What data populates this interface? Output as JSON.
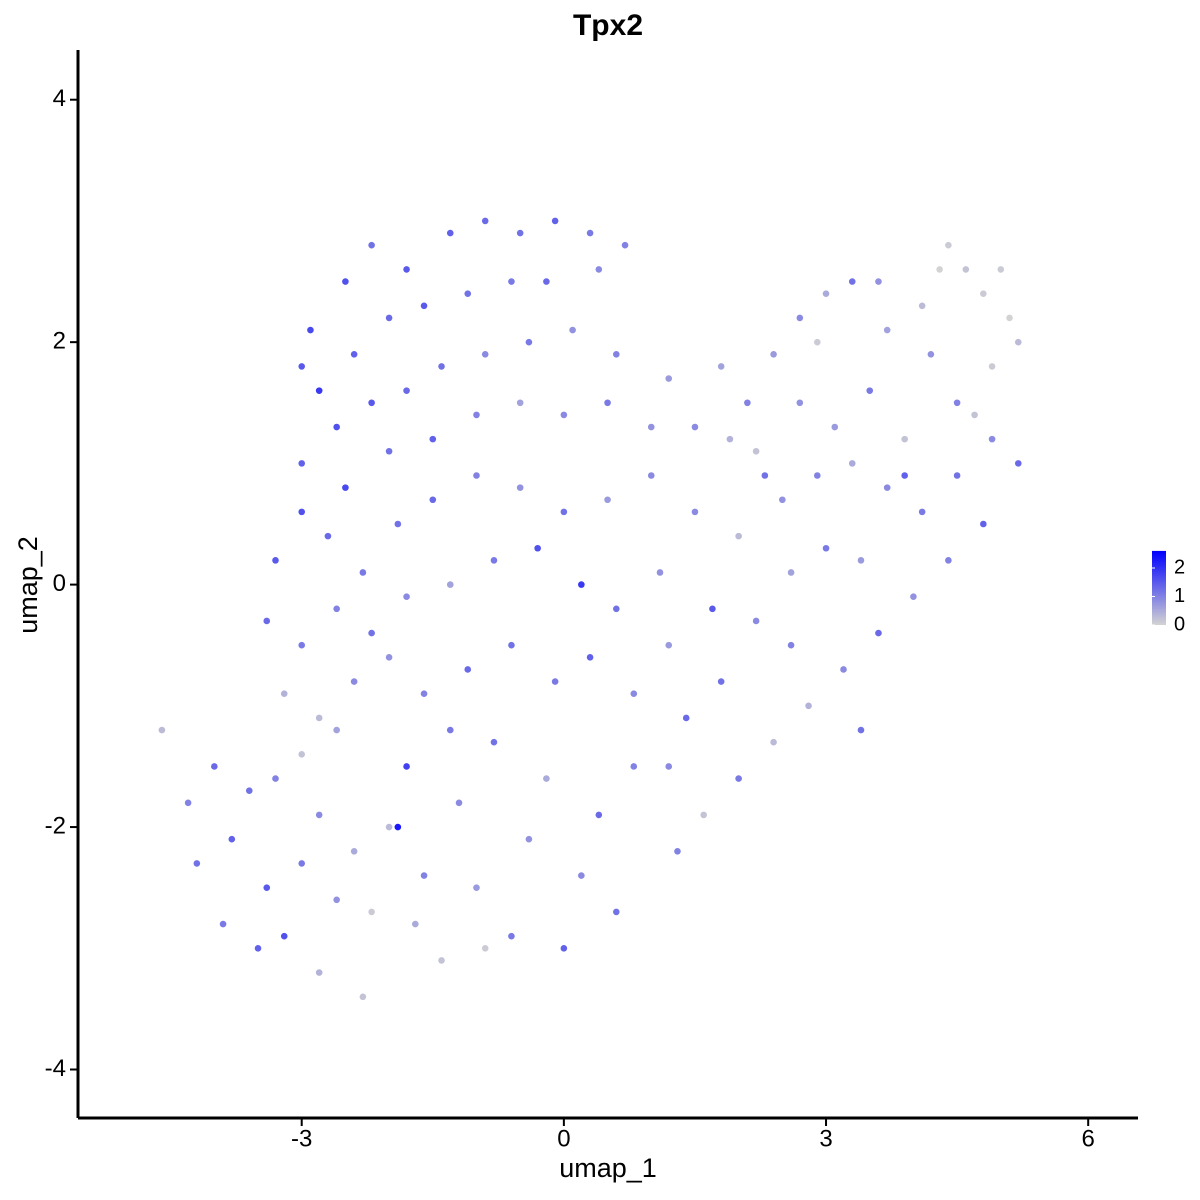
{
  "chart_data": {
    "type": "scatter",
    "title": "Tpx2",
    "xlabel": "umap_1",
    "ylabel": "umap_2",
    "xlim": [
      -5.56,
      6.57
    ],
    "ylim": [
      -4.4,
      4.41
    ],
    "xticks": [
      -3,
      0,
      3,
      6
    ],
    "yticks": [
      -4,
      -2,
      0,
      2,
      4
    ],
    "color_low": "#d3d3d3",
    "color_high": "#0000ff",
    "colorbar_lim": [
      0,
      2.6
    ],
    "colorbar_ticks": [
      0,
      1,
      2
    ],
    "x": [
      -2.2,
      -1.8,
      -1.3,
      -0.9,
      -0.5,
      -0.1,
      0.3,
      0.7,
      -2.5,
      -2.9,
      -3.0,
      -2.8,
      -2.4,
      -2.0,
      -1.6,
      -1.1,
      -0.6,
      -0.2,
      0.4,
      -2.6,
      -2.2,
      -1.8,
      -1.4,
      -0.9,
      -0.4,
      0.1,
      0.6,
      -3.0,
      -2.5,
      -2.0,
      -1.5,
      -1.0,
      -0.5,
      0.0,
      0.5,
      1.0,
      -3.3,
      -3.0,
      -2.7,
      -2.3,
      -1.9,
      -1.5,
      -1.0,
      -0.5,
      0.0,
      0.5,
      1.0,
      -3.4,
      -3.0,
      -2.6,
      -2.2,
      -1.8,
      -1.3,
      -0.8,
      -0.3,
      0.2,
      0.6,
      1.1,
      -3.2,
      -2.8,
      -2.4,
      -2.0,
      -1.6,
      -1.1,
      -0.6,
      -0.1,
      0.3,
      0.8,
      1.2,
      -4.6,
      -4.3,
      -4.0,
      -3.8,
      -3.6,
      -3.4,
      -3.2,
      -3.0,
      -2.8,
      -2.6,
      -2.4,
      -2.3,
      -2.2,
      -2.0,
      -1.9,
      -1.8,
      -1.6,
      -1.4,
      -1.2,
      -1.0,
      -0.8,
      -0.6,
      -0.4,
      -0.2,
      0.0,
      0.2,
      0.4,
      0.6,
      0.8,
      -3.0,
      -2.6,
      -3.5,
      -2.8,
      -1.7,
      -3.9,
      -4.2,
      -3.3,
      -1.3,
      -0.9,
      1.2,
      1.5,
      1.8,
      2.1,
      2.4,
      2.7,
      3.0,
      3.3,
      3.7,
      4.1,
      4.4,
      4.6,
      4.8,
      5.1,
      5.2,
      4.9,
      4.5,
      4.2,
      3.9,
      3.5,
      3.1,
      2.7,
      2.3,
      1.9,
      1.5,
      2.0,
      2.5,
      2.9,
      3.3,
      3.7,
      4.1,
      4.5,
      4.9,
      5.2,
      4.8,
      4.4,
      4.0,
      3.6,
      3.2,
      2.8,
      2.4,
      2.0,
      1.6,
      1.3,
      1.8,
      2.2,
      2.6,
      3.0,
      3.4,
      1.4,
      1.7,
      1.2,
      3.9,
      4.7,
      5.0,
      4.3,
      3.6,
      2.9,
      2.2,
      2.6,
      3.4
    ],
    "y": [
      2.8,
      2.6,
      2.9,
      3.0,
      2.9,
      3.0,
      2.9,
      2.8,
      2.5,
      2.1,
      1.8,
      1.6,
      1.9,
      2.2,
      2.3,
      2.4,
      2.5,
      2.5,
      2.6,
      1.3,
      1.5,
      1.6,
      1.8,
      1.9,
      2.0,
      2.1,
      1.9,
      1.0,
      0.8,
      1.1,
      1.2,
      1.4,
      1.5,
      1.4,
      1.5,
      1.3,
      0.2,
      0.6,
      0.4,
      0.1,
      0.5,
      0.7,
      0.9,
      0.8,
      0.6,
      0.7,
      0.9,
      -0.3,
      -0.5,
      -0.2,
      -0.4,
      -0.1,
      0.0,
      0.2,
      0.3,
      0.0,
      -0.2,
      0.1,
      -0.9,
      -1.1,
      -0.8,
      -0.6,
      -0.9,
      -0.7,
      -0.5,
      -0.8,
      -0.6,
      -0.9,
      -0.5,
      -1.2,
      -1.8,
      -1.5,
      -2.1,
      -1.7,
      -2.5,
      -2.9,
      -2.3,
      -1.9,
      -2.6,
      -2.2,
      -3.4,
      -2.7,
      -2.0,
      -2.0,
      -1.5,
      -2.4,
      -3.1,
      -1.8,
      -2.5,
      -1.3,
      -2.9,
      -2.1,
      -1.6,
      -3.0,
      -2.4,
      -1.9,
      -2.7,
      -1.5,
      -1.4,
      -1.2,
      -3.0,
      -3.2,
      -2.8,
      -2.8,
      -2.3,
      -1.6,
      -1.2,
      -3.0,
      1.7,
      1.3,
      1.8,
      1.5,
      1.9,
      2.2,
      2.4,
      2.5,
      2.1,
      2.3,
      2.8,
      2.6,
      2.4,
      2.2,
      2.0,
      1.8,
      1.5,
      1.9,
      1.2,
      1.6,
      1.3,
      1.5,
      0.9,
      1.2,
      0.6,
      0.4,
      0.7,
      0.9,
      1.0,
      0.8,
      0.6,
      0.9,
      1.2,
      1.0,
      0.5,
      0.2,
      -0.1,
      -0.4,
      -0.7,
      -1.0,
      -1.3,
      -1.6,
      -1.9,
      -2.2,
      -0.8,
      -0.3,
      0.1,
      0.3,
      0.2,
      -1.1,
      -0.2,
      -1.5,
      0.9,
      1.4,
      2.6,
      2.6,
      2.5,
      2.0,
      1.1,
      -0.5,
      -1.2
    ],
    "values": [
      1.2,
      1.5,
      1.4,
      1.3,
      1.2,
      1.4,
      1.1,
      1.0,
      1.6,
      1.7,
      1.5,
      1.9,
      1.4,
      1.3,
      1.5,
      1.2,
      1.1,
      1.3,
      0.9,
      1.6,
      1.5,
      1.3,
      1.2,
      0.9,
      1.1,
      0.8,
      1.0,
      1.4,
      1.7,
      1.2,
      1.4,
      1.0,
      0.6,
      0.9,
      1.1,
      0.8,
      1.5,
      1.6,
      1.3,
      1.1,
      1.2,
      1.3,
      1.0,
      0.8,
      1.2,
      0.7,
      0.9,
      1.3,
      1.1,
      1.0,
      1.2,
      0.9,
      0.6,
      1.1,
      1.6,
      1.9,
      1.2,
      0.8,
      0.4,
      0.3,
      0.9,
      0.8,
      1.0,
      1.3,
      1.2,
      1.1,
      1.4,
      0.9,
      0.7,
      0.3,
      1.0,
      1.3,
      1.4,
      1.2,
      1.5,
      1.6,
      1.1,
      0.9,
      0.8,
      0.5,
      0.2,
      0.1,
      0.3,
      2.3,
      1.8,
      1.0,
      0.2,
      0.9,
      0.7,
      1.2,
      1.1,
      0.8,
      0.5,
      1.4,
      0.9,
      1.3,
      1.2,
      1.0,
      0.2,
      0.6,
      1.4,
      0.4,
      0.5,
      1.1,
      1.2,
      1.0,
      1.1,
      0.1,
      0.7,
      0.9,
      0.6,
      1.0,
      0.7,
      0.9,
      0.5,
      1.2,
      0.6,
      0.3,
      0.1,
      0.2,
      0.1,
      0.0,
      0.3,
      0.1,
      1.0,
      0.8,
      0.2,
      1.1,
      0.7,
      0.8,
      1.2,
      0.4,
      0.9,
      0.3,
      0.8,
      1.0,
      0.5,
      0.9,
      1.1,
      1.2,
      0.9,
      1.3,
      1.4,
      1.0,
      0.8,
      1.3,
      0.9,
      0.4,
      0.3,
      1.1,
      0.2,
      1.0,
      1.2,
      0.9,
      0.6,
      1.1,
      0.7,
      1.3,
      1.5,
      0.9,
      1.4,
      0.2,
      0.1,
      0.0,
      0.8,
      0.1,
      0.2,
      1.0,
      1.2
    ]
  }
}
